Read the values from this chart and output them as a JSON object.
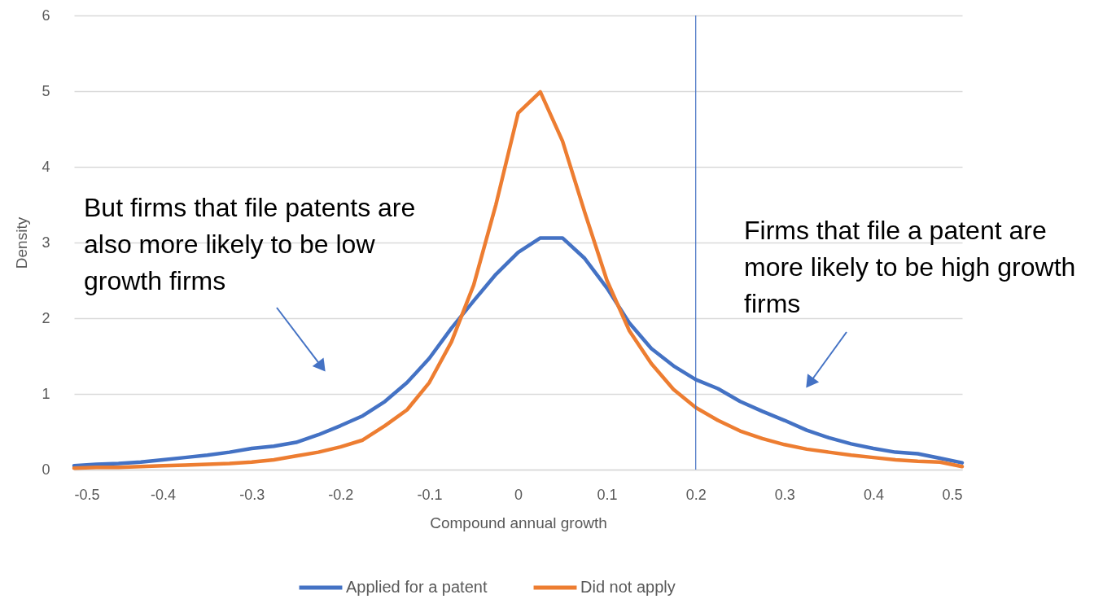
{
  "chart_data": {
    "type": "line",
    "xlabel": "Compound annual growth",
    "ylabel": "Density",
    "x": [
      -0.5,
      -0.475,
      -0.45,
      -0.425,
      -0.4,
      -0.375,
      -0.35,
      -0.325,
      -0.3,
      -0.275,
      -0.25,
      -0.225,
      -0.2,
      -0.175,
      -0.15,
      -0.125,
      -0.1,
      -0.075,
      -0.05,
      -0.025,
      0,
      0.025,
      0.05,
      0.075,
      0.1,
      0.125,
      0.15,
      0.175,
      0.2,
      0.225,
      0.25,
      0.275,
      0.3,
      0.325,
      0.35,
      0.375,
      0.4,
      0.425,
      0.45,
      0.475,
      0.5
    ],
    "series": [
      {
        "name": "Applied for a patent",
        "color": "#4472c4",
        "values": [
          0.05,
          0.07,
          0.08,
          0.1,
          0.13,
          0.16,
          0.19,
          0.23,
          0.28,
          0.31,
          0.36,
          0.46,
          0.58,
          0.71,
          0.9,
          1.15,
          1.47,
          1.87,
          2.23,
          2.58,
          2.87,
          3.06,
          3.06,
          2.79,
          2.4,
          1.94,
          1.6,
          1.37,
          1.19,
          1.07,
          0.9,
          0.77,
          0.65,
          0.52,
          0.42,
          0.34,
          0.28,
          0.23,
          0.21,
          0.15,
          0.09
        ]
      },
      {
        "name": "Did not apply",
        "color": "#ed7d31",
        "values": [
          0.02,
          0.03,
          0.03,
          0.04,
          0.05,
          0.06,
          0.07,
          0.08,
          0.1,
          0.13,
          0.18,
          0.23,
          0.3,
          0.39,
          0.58,
          0.79,
          1.15,
          1.69,
          2.44,
          3.5,
          4.71,
          4.99,
          4.34,
          3.4,
          2.5,
          1.84,
          1.4,
          1.06,
          0.82,
          0.65,
          0.51,
          0.41,
          0.33,
          0.27,
          0.23,
          0.19,
          0.16,
          0.13,
          0.11,
          0.1,
          0.04
        ]
      }
    ],
    "xlim": [
      -0.5,
      0.5
    ],
    "xticks": [
      -0.5,
      -0.4,
      -0.3,
      -0.2,
      -0.1,
      0,
      0.1,
      0.2,
      0.3,
      0.4,
      0.5
    ],
    "ylim": [
      0,
      6
    ],
    "yticks": [
      0,
      1,
      2,
      3,
      4,
      5,
      6
    ],
    "grid": "y",
    "legend": "bottom",
    "ref_lines": [
      {
        "axis": "x",
        "value": 0.2,
        "color": "#4472c4"
      }
    ],
    "annotations": [
      "But firms that file patents are\nalso more likely to be low\ngrowth firms",
      "Firms that file a patent are\nmore likely to be high growth\nfirms"
    ]
  }
}
